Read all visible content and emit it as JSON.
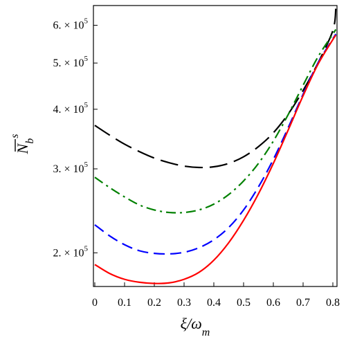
{
  "chart_data": {
    "type": "line",
    "title": "",
    "xlabel": {
      "main": "ξ/ω",
      "sub": "m"
    },
    "ylabel": {
      "main": "N",
      "sub": "b",
      "sup": "s",
      "overline": true
    },
    "xlim": [
      0,
      0.81
    ],
    "ylim": [
      170000,
      660000
    ],
    "y_scale": "log",
    "grid": false,
    "legend": "none",
    "x_ticks": [
      {
        "value": 0,
        "label": "0"
      },
      {
        "value": 0.1,
        "label": "0.1"
      },
      {
        "value": 0.2,
        "label": "0.2"
      },
      {
        "value": 0.3,
        "label": "0.3"
      },
      {
        "value": 0.4,
        "label": "0.4"
      },
      {
        "value": 0.5,
        "label": "0.5"
      },
      {
        "value": 0.6,
        "label": "0.6"
      },
      {
        "value": 0.7,
        "label": "0.7"
      },
      {
        "value": 0.8,
        "label": "0.8"
      }
    ],
    "y_ticks": [
      {
        "value": 200000,
        "mantissa": "2.",
        "base": "× 10",
        "exp": "5"
      },
      {
        "value": 300000,
        "mantissa": "3.",
        "base": "× 10",
        "exp": "5"
      },
      {
        "value": 400000,
        "mantissa": "4.",
        "base": "× 10",
        "exp": "5"
      },
      {
        "value": 500000,
        "mantissa": "5.",
        "base": "× 10",
        "exp": "5"
      },
      {
        "value": 600000,
        "mantissa": "6.",
        "base": "× 10",
        "exp": "5"
      }
    ],
    "series": [
      {
        "color": "#000000",
        "dash": "long-dash",
        "x": [
          0,
          0.05,
          0.1,
          0.15,
          0.2,
          0.25,
          0.3,
          0.35,
          0.4,
          0.45,
          0.5,
          0.55,
          0.6,
          0.65,
          0.7,
          0.75,
          0.8,
          0.81
        ],
        "y": [
          370000,
          353000,
          338000,
          326000,
          316000,
          309000,
          304000,
          302000,
          303000,
          308000,
          318000,
          334000,
          357000,
          391000,
          438000,
          500000,
          585000,
          650000
        ]
      },
      {
        "color": "#008000",
        "dash": "dash-dot",
        "x": [
          0,
          0.05,
          0.1,
          0.15,
          0.2,
          0.25,
          0.3,
          0.35,
          0.4,
          0.45,
          0.5,
          0.55,
          0.6,
          0.65,
          0.7,
          0.75,
          0.8,
          0.81
        ],
        "y": [
          288000,
          274000,
          262000,
          252000,
          246000,
          243000,
          243000,
          246000,
          253000,
          265000,
          283000,
          308000,
          343000,
          390000,
          449000,
          515000,
          575000,
          588000
        ]
      },
      {
        "color": "#0000ff",
        "dash": "dashed",
        "x": [
          0,
          0.05,
          0.1,
          0.15,
          0.2,
          0.25,
          0.3,
          0.35,
          0.4,
          0.45,
          0.5,
          0.55,
          0.6,
          0.65,
          0.7,
          0.75,
          0.8,
          0.81
        ],
        "y": [
          229000,
          217000,
          208000,
          202000,
          199500,
          199000,
          200500,
          205000,
          213000,
          226000,
          246000,
          275000,
          314000,
          366000,
          430000,
          500000,
          562000,
          575000
        ]
      },
      {
        "color": "#ff0000",
        "dash": "solid",
        "x": [
          0,
          0.05,
          0.1,
          0.15,
          0.2,
          0.25,
          0.3,
          0.35,
          0.4,
          0.45,
          0.5,
          0.55,
          0.6,
          0.65,
          0.7,
          0.75,
          0.8,
          0.81
        ],
        "y": [
          189000,
          181000,
          176000,
          173500,
          172500,
          173000,
          176000,
          182000,
          193000,
          210000,
          234000,
          266000,
          308000,
          362000,
          427000,
          497000,
          560000,
          572000
        ]
      }
    ]
  }
}
